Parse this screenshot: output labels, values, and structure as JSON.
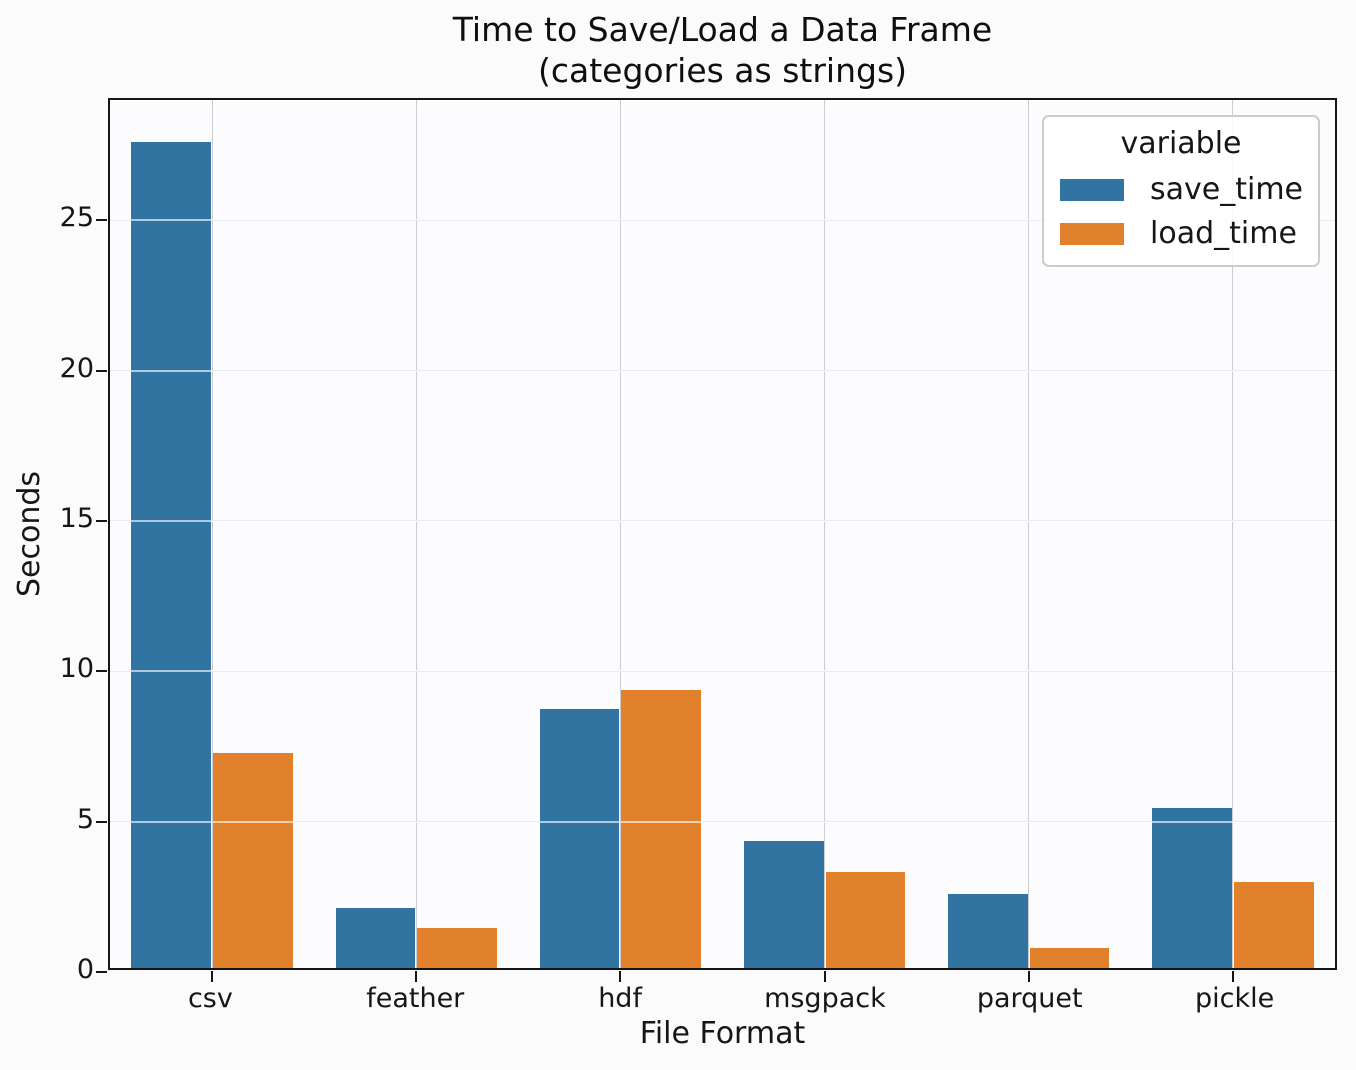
{
  "figure_title_lines": [
    "Time to Save/Load a Data Frame",
    "(categories as strings)"
  ],
  "chart_data": {
    "type": "bar",
    "title": "Time to Save/Load a Data Frame\n(categories as strings)",
    "title_lines": [
      "Time to Save/Load a Data Frame",
      "(categories as strings)"
    ],
    "xlabel": "File Format",
    "ylabel": "Seconds",
    "categories": [
      "csv",
      "feather",
      "hdf",
      "msgpack",
      "parquet",
      "pickle"
    ],
    "series": [
      {
        "name": "save_time",
        "color": "#3274a1",
        "values": [
          27.6,
          2.0,
          8.65,
          4.25,
          2.48,
          5.35
        ]
      },
      {
        "name": "load_time",
        "color": "#e1812c",
        "values": [
          7.2,
          1.35,
          9.3,
          3.2,
          0.67,
          2.86
        ]
      }
    ],
    "ylim": [
      0,
      29
    ],
    "yticks": [
      0,
      5,
      10,
      15,
      20,
      25
    ],
    "grid": true,
    "grid_above_bars": true,
    "legend": {
      "title": "variable",
      "position": "upper right"
    },
    "colors": {
      "save_time": "#3274a1",
      "load_time": "#e1812c",
      "gridline": "#cbcbd0",
      "spine": "#161616"
    }
  }
}
